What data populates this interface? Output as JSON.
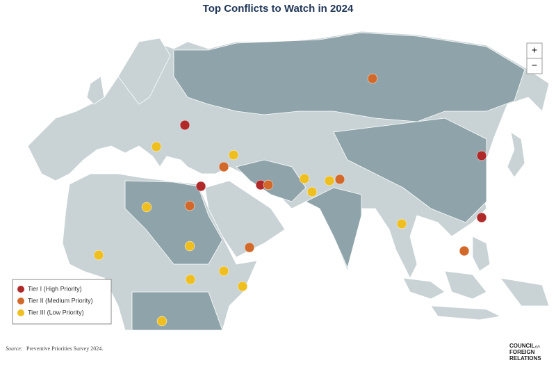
{
  "header": {
    "title": "Top Conflicts to Watch in 2024"
  },
  "zoom": {
    "in": "+",
    "out": "−"
  },
  "legend": {
    "items": [
      "Tier I (High Priority)",
      "Tier II (Medium Priority)",
      "Tier III (Low Priority)"
    ]
  },
  "footer": {
    "source_label": "Source:",
    "source": "Preventive Priorities Survey 2024.",
    "logo": {
      "line1": "COUNCIL",
      "small": "on",
      "line2": "FOREIGN",
      "line3": "RELATIONS"
    }
  }
}
